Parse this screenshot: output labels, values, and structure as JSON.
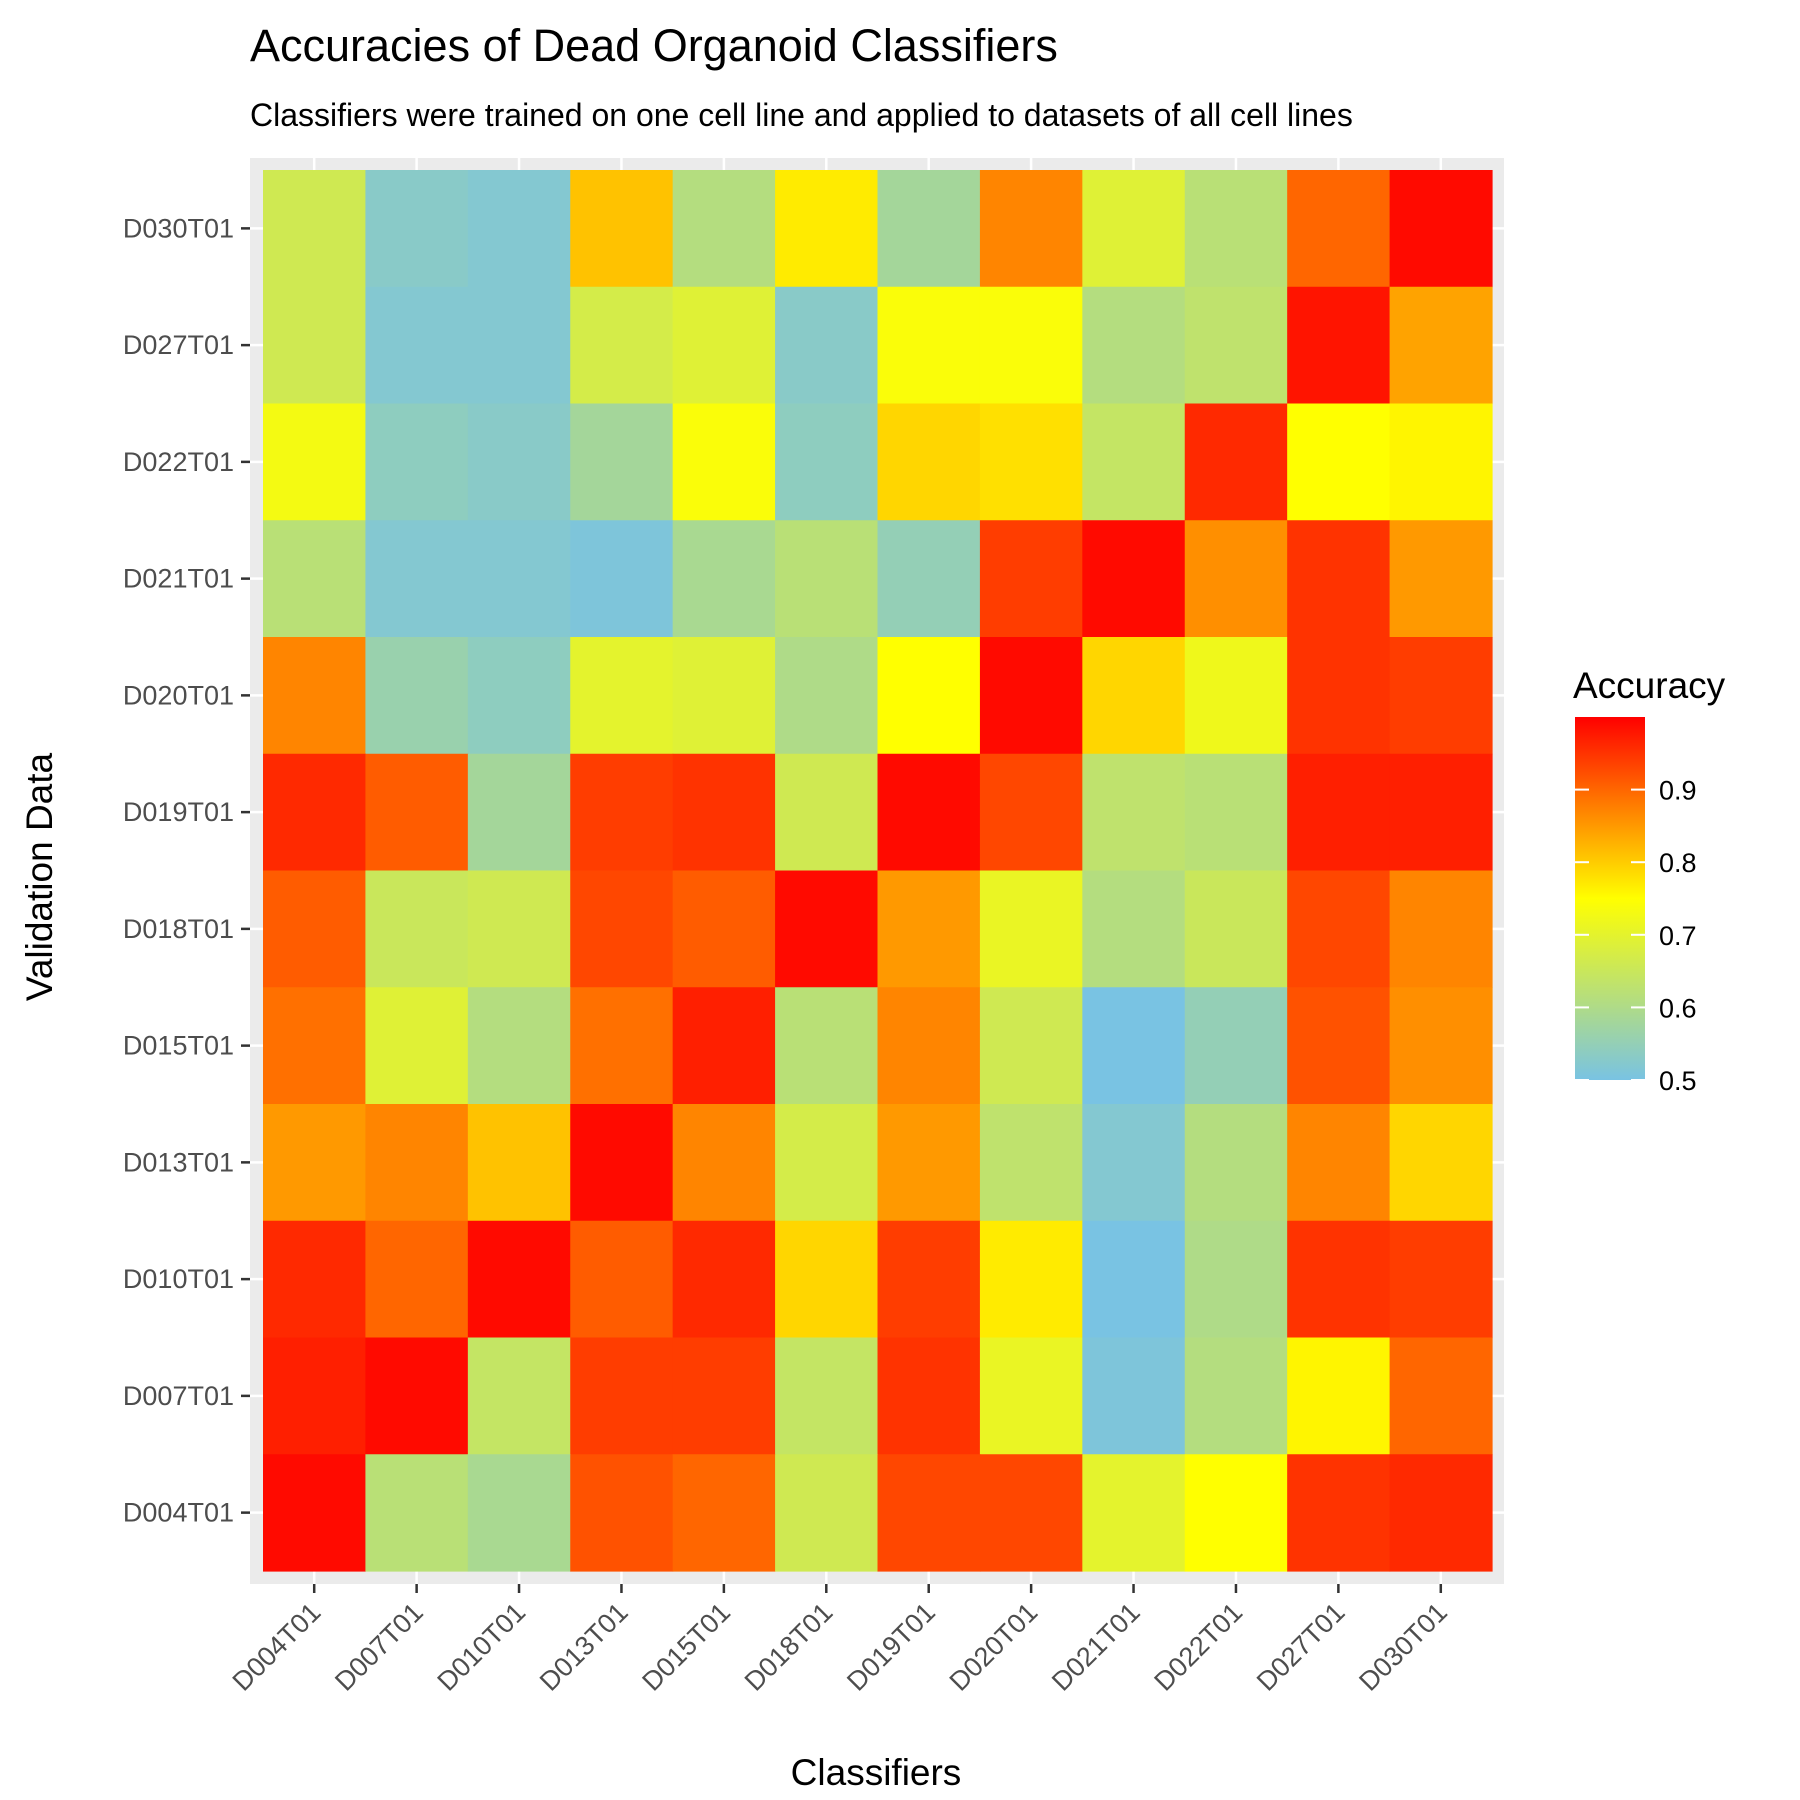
{
  "chart_data": {
    "type": "heatmap",
    "title": "Accuracies of Dead Organoid Classifiers",
    "subtitle": "Classifiers were trained on one cell line and applied to datasets of all cell lines",
    "xlabel": "Classifiers",
    "ylabel": "Validation Data",
    "x_categories": [
      "D004T01",
      "D007T01",
      "D010T01",
      "D013T01",
      "D015T01",
      "D018T01",
      "D019T01",
      "D020T01",
      "D021T01",
      "D022T01",
      "D027T01",
      "D030T01"
    ],
    "y_categories_top_to_bottom": [
      "D030T01",
      "D027T01",
      "D022T01",
      "D021T01",
      "D020T01",
      "D019T01",
      "D018T01",
      "D015T01",
      "D013T01",
      "D010T01",
      "D007T01",
      "D004T01"
    ],
    "values_rows_top_to_bottom": [
      [
        0.66,
        0.53,
        0.52,
        0.81,
        0.61,
        0.77,
        0.58,
        0.87,
        0.69,
        0.62,
        0.9,
        0.99
      ],
      [
        0.66,
        0.52,
        0.52,
        0.67,
        0.69,
        0.53,
        0.74,
        0.74,
        0.61,
        0.63,
        0.98,
        0.84
      ],
      [
        0.73,
        0.54,
        0.53,
        0.58,
        0.74,
        0.54,
        0.79,
        0.78,
        0.64,
        0.96,
        0.75,
        0.76
      ],
      [
        0.62,
        0.52,
        0.52,
        0.51,
        0.59,
        0.62,
        0.55,
        0.94,
        0.99,
        0.86,
        0.95,
        0.85
      ],
      [
        0.87,
        0.56,
        0.54,
        0.7,
        0.69,
        0.6,
        0.75,
        0.99,
        0.79,
        0.72,
        0.95,
        0.94
      ],
      [
        0.96,
        0.91,
        0.58,
        0.94,
        0.95,
        0.66,
        0.99,
        0.93,
        0.63,
        0.62,
        0.97,
        0.97
      ],
      [
        0.91,
        0.65,
        0.66,
        0.93,
        0.91,
        0.99,
        0.85,
        0.71,
        0.61,
        0.65,
        0.93,
        0.87
      ],
      [
        0.89,
        0.69,
        0.61,
        0.89,
        0.97,
        0.62,
        0.87,
        0.66,
        0.5,
        0.55,
        0.92,
        0.86
      ],
      [
        0.85,
        0.87,
        0.81,
        0.99,
        0.87,
        0.67,
        0.85,
        0.63,
        0.52,
        0.61,
        0.87,
        0.79
      ],
      [
        0.96,
        0.9,
        0.99,
        0.91,
        0.96,
        0.79,
        0.94,
        0.77,
        0.5,
        0.6,
        0.95,
        0.94
      ],
      [
        0.97,
        0.99,
        0.64,
        0.94,
        0.94,
        0.64,
        0.95,
        0.71,
        0.51,
        0.61,
        0.76,
        0.9
      ],
      [
        0.99,
        0.62,
        0.59,
        0.92,
        0.9,
        0.66,
        0.93,
        0.93,
        0.7,
        0.75,
        0.95,
        0.96
      ]
    ],
    "color_scale": {
      "low": 0.5,
      "high": 1.0,
      "stops": [
        {
          "value": 0.5,
          "color": "#79c3e3"
        },
        {
          "value": 0.75,
          "color": "#ffff00"
        },
        {
          "value": 1.0,
          "color": "#ff0000"
        }
      ]
    },
    "legend": {
      "title": "Accuracy",
      "ticks": [
        0.5,
        0.6,
        0.7,
        0.8,
        0.9
      ],
      "placement": "right"
    },
    "panel_background": "#ebebeb",
    "grid": true
  }
}
